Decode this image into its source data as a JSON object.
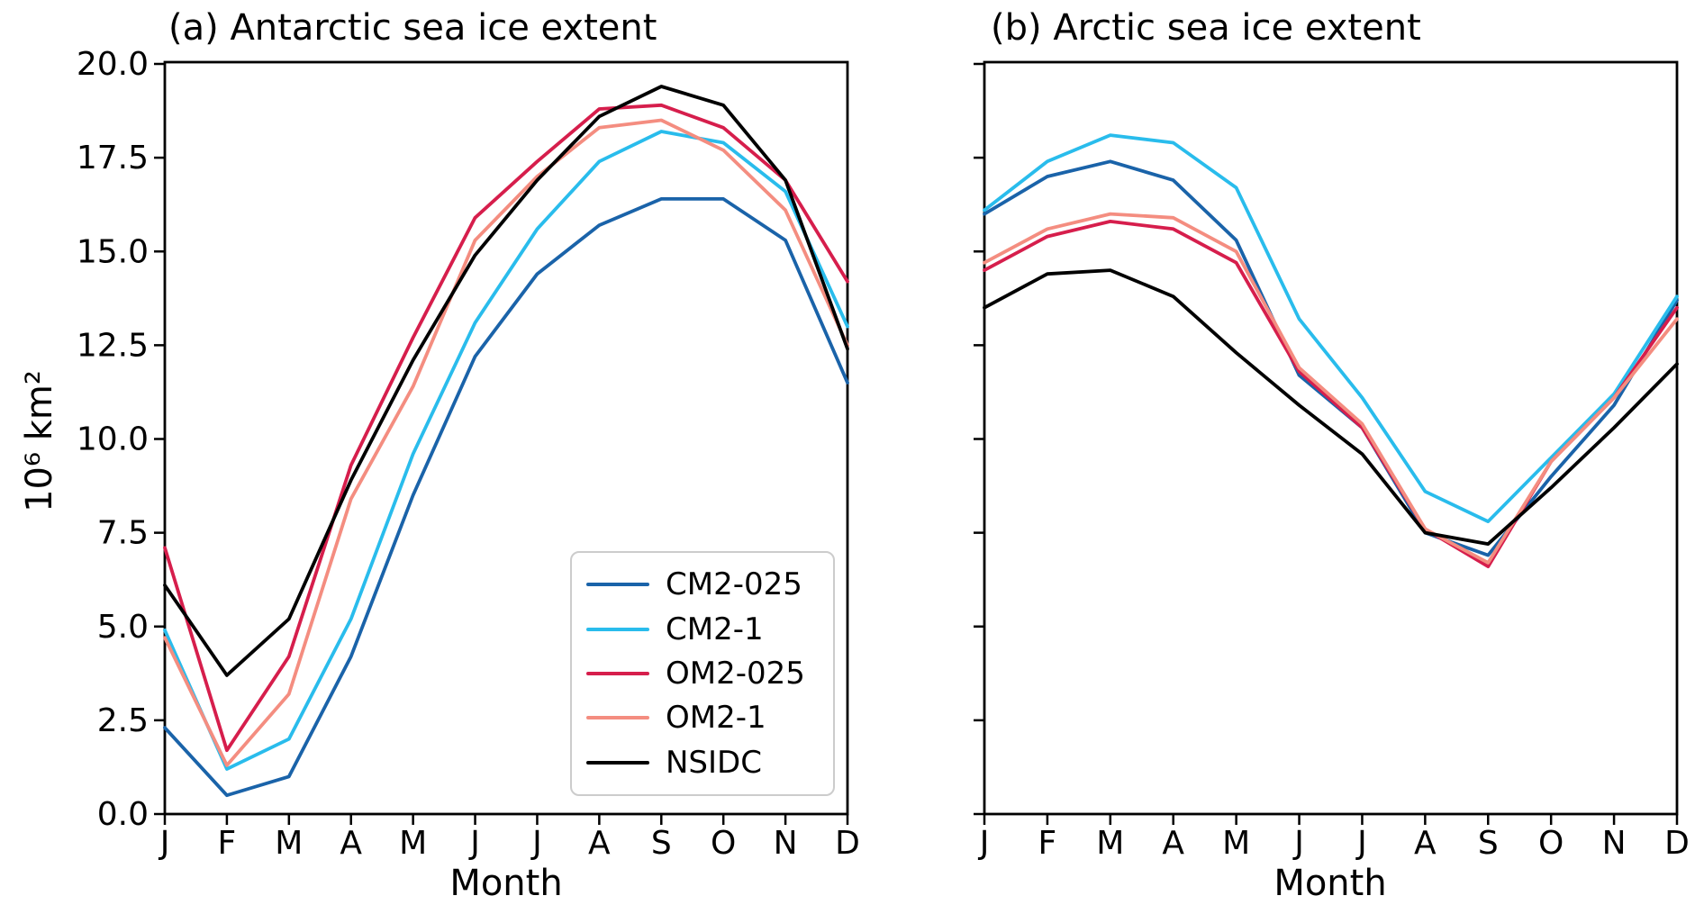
{
  "figure": {
    "background_color": "#ffffff",
    "axis_color": "#000000"
  },
  "legend": {
    "position": "lower-right-of-panel-a",
    "items": [
      {
        "label": "CM2-025",
        "color": "#1A63A9"
      },
      {
        "label": "CM2-1",
        "color": "#29BCEC"
      },
      {
        "label": "OM2-025",
        "color": "#D61E4C"
      },
      {
        "label": "OM2-1",
        "color": "#F48D80"
      },
      {
        "label": "NSIDC",
        "color": "#000000"
      }
    ]
  },
  "chart_data": [
    {
      "panel": "a",
      "type": "line",
      "title": "(a) Antarctic sea ice extent",
      "xlabel": "Month",
      "ylabel": "10⁶ km²",
      "categories": [
        "J",
        "F",
        "M",
        "A",
        "M",
        "J",
        "J",
        "A",
        "S",
        "O",
        "N",
        "D"
      ],
      "ylim": [
        0,
        20.05
      ],
      "yticks": [
        0.0,
        2.5,
        5.0,
        7.5,
        10.0,
        12.5,
        15.0,
        17.5,
        20.0
      ],
      "ytick_labels": [
        "0.0",
        "2.5",
        "5.0",
        "7.5",
        "10.0",
        "12.5",
        "15.0",
        "17.5",
        "20.0"
      ],
      "show_ytick_labels": true,
      "grid": false,
      "legend_position": "lower right",
      "series": [
        {
          "name": "CM2-025",
          "color": "#1A63A9",
          "values": [
            2.3,
            0.5,
            1.0,
            4.2,
            8.5,
            12.2,
            14.4,
            15.7,
            16.4,
            16.4,
            15.3,
            11.5
          ]
        },
        {
          "name": "CM2-1",
          "color": "#29BCEC",
          "values": [
            4.9,
            1.2,
            2.0,
            5.2,
            9.6,
            13.1,
            15.6,
            17.4,
            18.2,
            17.9,
            16.6,
            13.0
          ]
        },
        {
          "name": "OM2-025",
          "color": "#D61E4C",
          "values": [
            7.1,
            1.7,
            4.2,
            9.3,
            12.7,
            15.9,
            17.4,
            18.8,
            18.9,
            18.3,
            16.9,
            14.2
          ]
        },
        {
          "name": "OM2-1",
          "color": "#F48D80",
          "values": [
            4.7,
            1.3,
            3.2,
            8.4,
            11.4,
            15.3,
            17.0,
            18.3,
            18.5,
            17.7,
            16.1,
            12.5
          ]
        },
        {
          "name": "NSIDC",
          "color": "#000000",
          "values": [
            6.1,
            3.7,
            5.2,
            8.9,
            12.1,
            14.9,
            16.9,
            18.6,
            19.4,
            18.9,
            16.9,
            12.4
          ]
        }
      ]
    },
    {
      "panel": "b",
      "type": "line",
      "title": "(b) Arctic sea ice extent",
      "xlabel": "Month",
      "ylabel": "",
      "categories": [
        "J",
        "F",
        "M",
        "A",
        "M",
        "J",
        "J",
        "A",
        "S",
        "O",
        "N",
        "D"
      ],
      "ylim": [
        0,
        20.05
      ],
      "yticks": [
        0.0,
        2.5,
        5.0,
        7.5,
        10.0,
        12.5,
        15.0,
        17.5,
        20.0
      ],
      "ytick_labels": [],
      "show_ytick_labels": false,
      "grid": false,
      "legend_position": "none",
      "series": [
        {
          "name": "CM2-025",
          "color": "#1A63A9",
          "values": [
            16.0,
            17.0,
            17.4,
            16.9,
            15.3,
            11.7,
            10.3,
            7.5,
            6.9,
            9.0,
            10.9,
            13.7
          ]
        },
        {
          "name": "CM2-1",
          "color": "#29BCEC",
          "values": [
            16.1,
            17.4,
            18.1,
            17.9,
            16.7,
            13.2,
            11.1,
            8.6,
            7.8,
            9.5,
            11.2,
            13.8
          ]
        },
        {
          "name": "OM2-025",
          "color": "#D61E4C",
          "values": [
            14.5,
            15.4,
            15.8,
            15.6,
            14.7,
            11.8,
            10.3,
            7.6,
            6.6,
            9.4,
            11.1,
            13.5
          ]
        },
        {
          "name": "OM2-1",
          "color": "#F48D80",
          "values": [
            14.7,
            15.6,
            16.0,
            15.9,
            15.0,
            11.9,
            10.4,
            7.6,
            6.7,
            9.4,
            11.1,
            13.2
          ]
        },
        {
          "name": "NSIDC",
          "color": "#000000",
          "values": [
            13.5,
            14.4,
            14.5,
            13.8,
            12.3,
            10.9,
            9.6,
            7.5,
            7.2,
            8.7,
            10.3,
            12.0
          ]
        }
      ]
    }
  ]
}
